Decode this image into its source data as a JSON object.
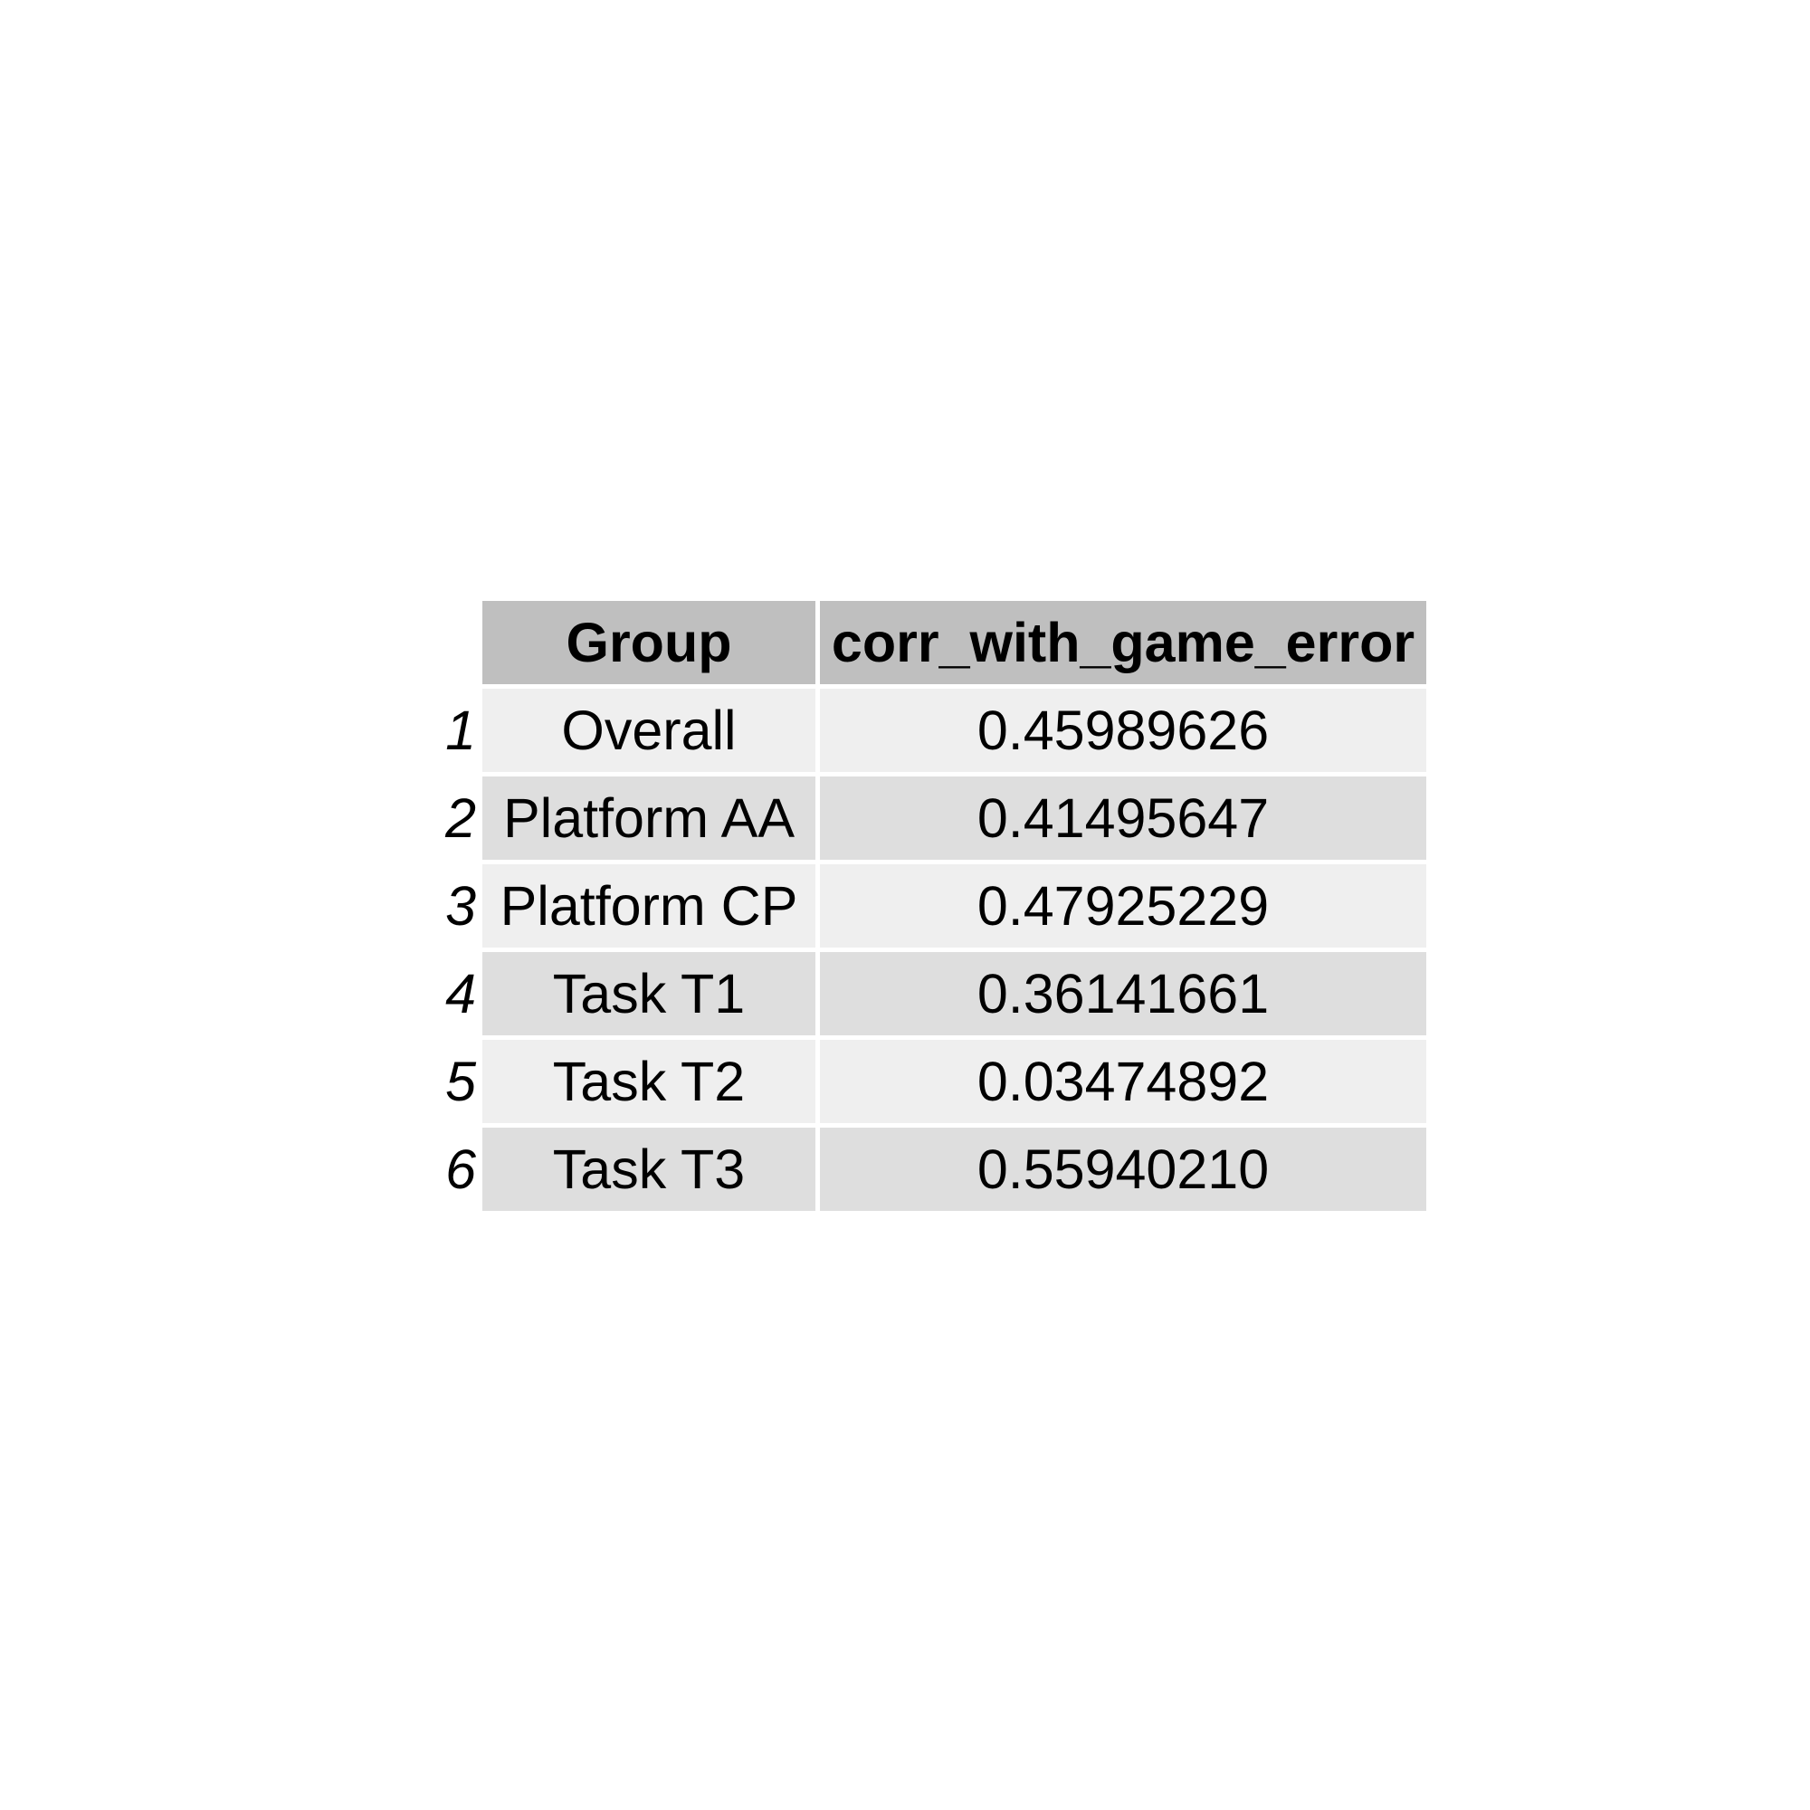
{
  "chart_data": {
    "type": "table",
    "columns": [
      "Group",
      "corr_with_game_error"
    ],
    "rows": [
      {
        "index": "1",
        "group": "Overall",
        "value": "0.45989626"
      },
      {
        "index": "2",
        "group": "Platform AA",
        "value": "0.41495647"
      },
      {
        "index": "3",
        "group": "Platform CP",
        "value": "0.47925229"
      },
      {
        "index": "4",
        "group": "Task T1",
        "value": "0.36141661"
      },
      {
        "index": "5",
        "group": "Task T2",
        "value": "0.03474892"
      },
      {
        "index": "6",
        "group": "Task T3",
        "value": "0.55940210"
      }
    ]
  },
  "colors": {
    "header_bg": "#bfbfbf",
    "row_light": "#efefef",
    "row_dark": "#dedede"
  }
}
